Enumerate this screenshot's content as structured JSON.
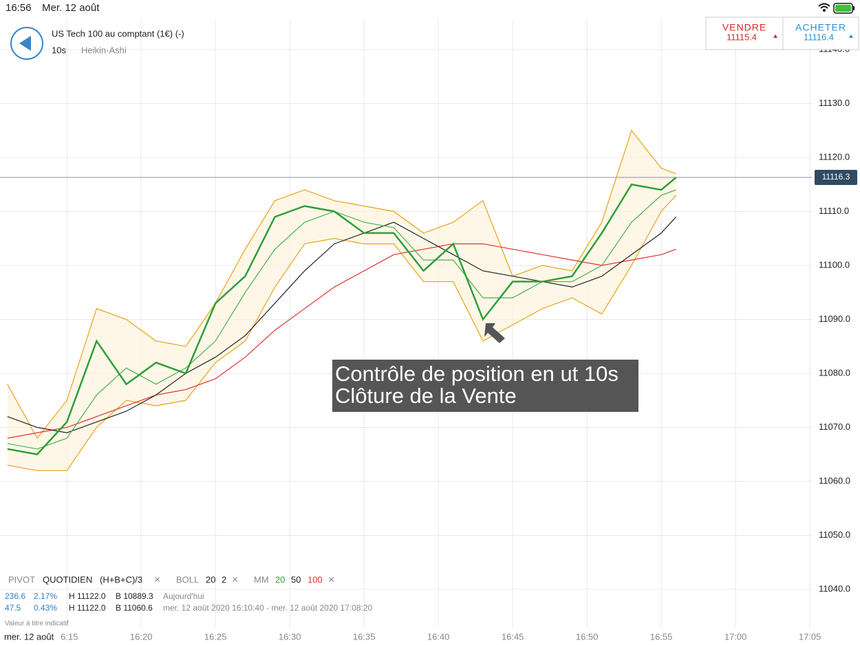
{
  "status_bar": {
    "time": "16:56",
    "date": "Mer. 12 août"
  },
  "header": {
    "instrument": "US Tech 100 au comptant (1€) (-)",
    "interval": "10s",
    "chart_style": "Heikin-Ashi"
  },
  "trade_buttons": [
    {
      "label": "VENDRE",
      "price": "11115.4"
    },
    {
      "label": "ACHETER",
      "price": "11116.4"
    }
  ],
  "chart_data": {
    "type": "line",
    "x": [
      "16:11",
      "16:13",
      "16:15",
      "16:17",
      "16:19",
      "16:21",
      "16:23",
      "16:25",
      "16:27",
      "16:29",
      "16:31",
      "16:33",
      "16:35",
      "16:37",
      "16:39",
      "16:41",
      "16:43",
      "16:45",
      "16:47",
      "16:49",
      "16:51",
      "16:53",
      "16:55",
      "16:56"
    ],
    "series": [
      {
        "color": "#2e9e3a",
        "values": [
          11066,
          11065,
          11071,
          11086,
          11078,
          11082,
          11080,
          11093,
          11098,
          11109,
          11111,
          11110,
          11106,
          11106,
          11099,
          11104,
          11090,
          11097,
          11097,
          11098,
          11106,
          11115,
          11114,
          11116.3
        ]
      },
      {
        "color": "#e8a317",
        "values": [
          11078,
          11068,
          11075,
          11092,
          11090,
          11086,
          11085,
          11093,
          11103,
          11112,
          11114,
          11112,
          11111,
          11110,
          11106,
          11108,
          11112,
          11098,
          11100,
          11099,
          11108,
          11125,
          11118,
          11117
        ]
      },
      {
        "color": "#e8a317",
        "values": [
          11063,
          11062,
          11062,
          11070,
          11075,
          11074,
          11075,
          11082,
          11086,
          11096,
          11104,
          11105,
          11104,
          11104,
          11097,
          11097,
          11086,
          11089,
          11092,
          11094,
          11091,
          11100,
          11110,
          11113
        ]
      },
      {
        "color": "#4caf50",
        "values": [
          11067,
          11066,
          11068,
          11076,
          11081,
          11078,
          11081,
          11086,
          11095,
          11103,
          11108,
          11110,
          11108,
          11107,
          11101,
          11101,
          11094,
          11094,
          11097,
          11097,
          11100,
          11108,
          11113,
          11114
        ]
      },
      {
        "color": "#222222",
        "values": [
          11072,
          11070,
          11069,
          11071,
          11073,
          11076,
          11080,
          11083,
          11087,
          11093,
          11099,
          11104,
          11106,
          11108,
          11105,
          11102,
          11099,
          11098,
          11097,
          11096,
          11098,
          11102,
          11106,
          11109
        ]
      },
      {
        "color": "#e03030",
        "values": [
          11068,
          11069,
          11070,
          11072,
          11074,
          11076,
          11077,
          11079,
          11083,
          11088,
          11092,
          11096,
          11099,
          11102,
          11103,
          11104,
          11104,
          11103,
          11102,
          11101,
          11100,
          11101,
          11102,
          11103
        ]
      }
    ],
    "xlim": [
      "16:10:30",
      "17:05:08"
    ],
    "xticks": [
      "16:15",
      "16:20",
      "16:25",
      "16:30",
      "16:35",
      "16:40",
      "16:45",
      "16:50",
      "16:55",
      "17:00",
      "17:05"
    ],
    "ylim": [
      11033,
      11145.6
    ],
    "yticks": [
      {
        "value": 11040,
        "label": "11040.0"
      },
      {
        "value": 11050,
        "label": "11050.0"
      },
      {
        "value": 11060,
        "label": "11060.0"
      },
      {
        "value": 11070,
        "label": "11070.0"
      },
      {
        "value": 11080,
        "label": "11080.0"
      },
      {
        "value": 11090,
        "label": "11090.0"
      },
      {
        "value": 11100,
        "label": "11100.0"
      },
      {
        "value": 11110,
        "label": "11110.0"
      },
      {
        "value": 11120,
        "label": "11120.0"
      },
      {
        "value": 11130,
        "label": "11130.0"
      },
      {
        "value": 11140,
        "label": "11140.0"
      }
    ],
    "grid": true,
    "last_price": 11116.3,
    "annotation": [
      "Contrôle de position en ut 10s",
      "Clôture de la Vente"
    ]
  },
  "indicators": {
    "pivot": "PIVOT",
    "pivot_period": "QUOTIDIEN",
    "pivot_formula": "(H+B+C)/3",
    "boll": "BOLL",
    "boll_period": 20,
    "boll_dev": 2,
    "mm": "MM",
    "mm_periods": [
      20,
      50,
      100
    ]
  },
  "stats": [
    {
      "change": "236.6",
      "percent": "2.17%",
      "high": "H 11122.0",
      "low": "B 10889.3",
      "period": "Aujourd'hui"
    },
    {
      "change": "47.5",
      "percent": "0.43%",
      "high": "H 11122.0",
      "low": "B 11060.6",
      "period": "mer. 12 août 2020 16:10:40 - mer. 12 août 2020 17:08:20"
    }
  ],
  "disclaimer": "Valeur à titre indicatif",
  "date_label": "mer. 12 août"
}
